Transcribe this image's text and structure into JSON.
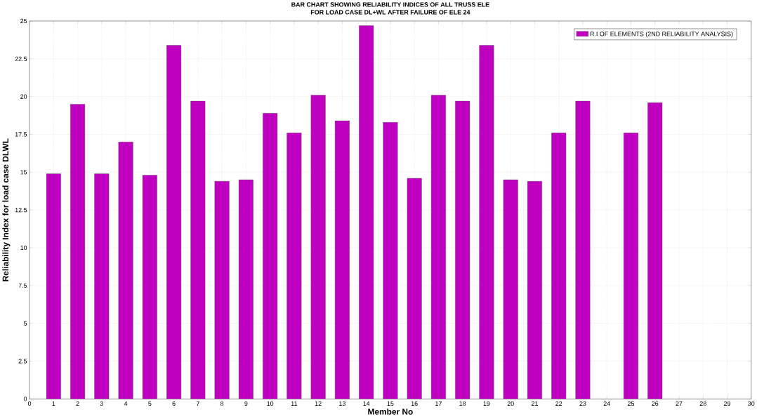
{
  "chart_data": {
    "type": "bar",
    "title": "BAR CHART SHOWING RELIABILITY INDICES OF ALL TRUSS ELE\nFOR LOAD CASE DL+WL AFTER FAILURE OF ELE 24",
    "xlabel": "Member No",
    "ylabel": "Reliability Index for load case DLWL",
    "x": [
      1,
      2,
      3,
      4,
      5,
      6,
      7,
      8,
      9,
      10,
      11,
      12,
      13,
      14,
      15,
      16,
      17,
      18,
      19,
      20,
      21,
      22,
      23,
      25,
      26
    ],
    "series": [
      {
        "name": "R.I OF ELEMENTS (2ND RELIABILITY ANALYSIS)",
        "color": "#c000c0",
        "values": [
          14.9,
          19.5,
          14.9,
          17.0,
          14.8,
          23.4,
          19.7,
          14.4,
          14.5,
          18.9,
          17.6,
          20.1,
          18.4,
          24.7,
          18.3,
          14.6,
          20.1,
          19.7,
          23.4,
          14.5,
          14.4,
          17.6,
          19.7,
          17.6,
          19.6
        ]
      }
    ],
    "xlim": [
      0,
      30
    ],
    "xticks": [
      0,
      1,
      2,
      3,
      4,
      5,
      6,
      7,
      8,
      9,
      10,
      11,
      12,
      13,
      14,
      15,
      16,
      17,
      18,
      19,
      20,
      21,
      22,
      23,
      24,
      25,
      26,
      27,
      28,
      29,
      30
    ],
    "ylim": [
      0,
      25
    ],
    "yticks": [
      0,
      2.5,
      5,
      7.5,
      10,
      12.5,
      15,
      17.5,
      20,
      22.5,
      25
    ],
    "grid": true,
    "legend": "top right"
  }
}
